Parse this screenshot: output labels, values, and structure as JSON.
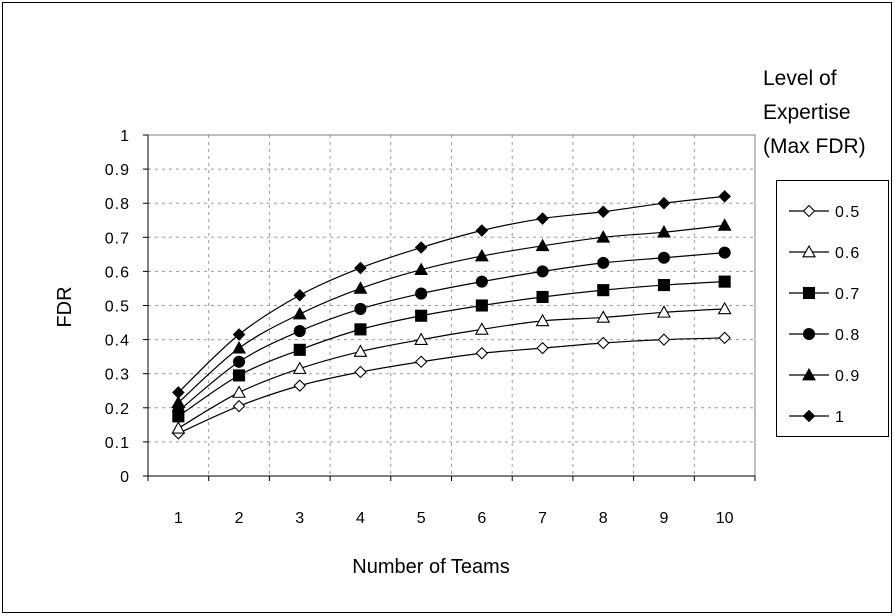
{
  "chart_data": {
    "type": "line",
    "title": "",
    "xlabel": "Number of Teams",
    "ylabel": "FDR",
    "categories": [
      "1",
      "2",
      "3",
      "4",
      "5",
      "6",
      "7",
      "8",
      "9",
      "10"
    ],
    "ylim": [
      0,
      1
    ],
    "yticks": [
      "0",
      "0.1",
      "0.2",
      "0.3",
      "0.4",
      "0.5",
      "0.6",
      "0.7",
      "0.8",
      "0.9",
      "1"
    ],
    "grid": "dashed",
    "legend_title": [
      "Level of",
      "Expertise",
      "(Max FDR)"
    ],
    "legend_position": "right",
    "series": [
      {
        "name": "0.5",
        "marker": "diamond-open",
        "values": [
          0.125,
          0.205,
          0.265,
          0.305,
          0.335,
          0.36,
          0.375,
          0.39,
          0.4,
          0.405
        ]
      },
      {
        "name": "0.6",
        "marker": "triangle-open",
        "values": [
          0.14,
          0.245,
          0.315,
          0.365,
          0.4,
          0.43,
          0.455,
          0.465,
          0.48,
          0.49
        ]
      },
      {
        "name": "0.7",
        "marker": "square",
        "values": [
          0.175,
          0.295,
          0.37,
          0.43,
          0.47,
          0.5,
          0.525,
          0.545,
          0.56,
          0.57
        ]
      },
      {
        "name": "0.8",
        "marker": "circle",
        "values": [
          0.19,
          0.335,
          0.425,
          0.49,
          0.535,
          0.57,
          0.6,
          0.625,
          0.64,
          0.655
        ]
      },
      {
        "name": "0.9",
        "marker": "triangle",
        "values": [
          0.215,
          0.375,
          0.475,
          0.55,
          0.605,
          0.645,
          0.675,
          0.7,
          0.715,
          0.735
        ]
      },
      {
        "name": "1",
        "marker": "diamond",
        "values": [
          0.245,
          0.415,
          0.53,
          0.61,
          0.67,
          0.72,
          0.755,
          0.775,
          0.8,
          0.82
        ]
      }
    ]
  }
}
